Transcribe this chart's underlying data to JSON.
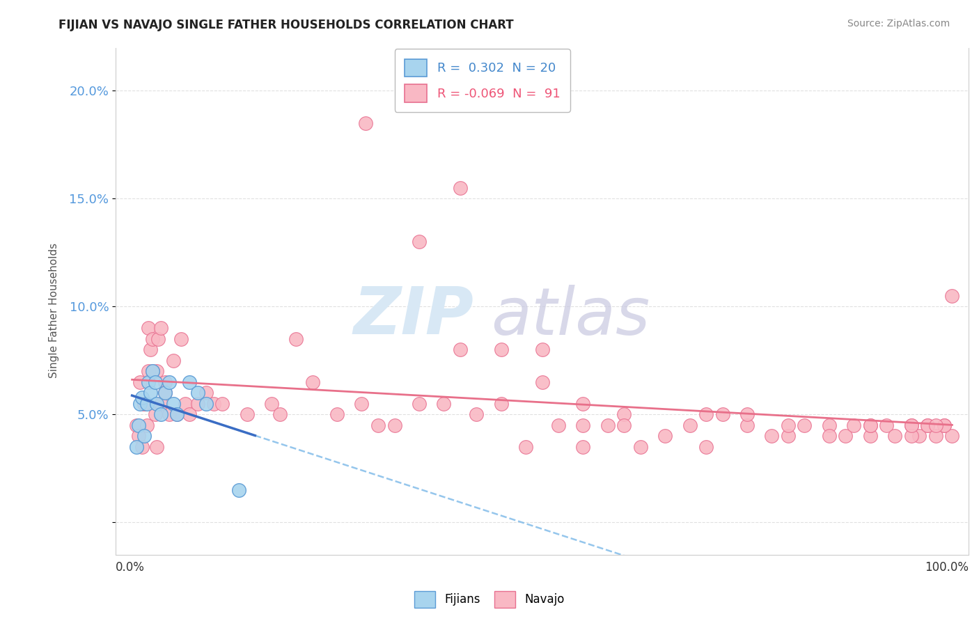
{
  "title": "FIJIAN VS NAVAJO SINGLE FATHER HOUSEHOLDS CORRELATION CHART",
  "source": "Source: ZipAtlas.com",
  "ylabel": "Single Father Households",
  "xlim": [
    -2,
    102
  ],
  "ylim": [
    -1.5,
    22.0
  ],
  "yticks": [
    0.0,
    5.0,
    10.0,
    15.0,
    20.0
  ],
  "ytick_labels": [
    "",
    "5.0%",
    "10.0%",
    "15.0%",
    "20.0%"
  ],
  "fijian_R": 0.302,
  "fijian_N": 20,
  "navajo_R": -0.069,
  "navajo_N": 91,
  "fijian_color": "#A8D4EE",
  "navajo_color": "#F9B8C4",
  "fijian_edge_color": "#5B9BD5",
  "navajo_edge_color": "#E87090",
  "fijian_line_color": "#3A6DC4",
  "navajo_line_color": "#E8708A",
  "dashed_line_color": "#7BB8E8",
  "background_color": "#FFFFFF",
  "grid_color": "#E0E0E0",
  "fijian_x": [
    0.5,
    0.8,
    1.0,
    1.2,
    1.5,
    1.8,
    2.0,
    2.2,
    2.5,
    2.8,
    3.0,
    3.5,
    4.0,
    4.5,
    5.0,
    5.5,
    7.0,
    8.0,
    9.0,
    13.0
  ],
  "fijian_y": [
    3.5,
    4.5,
    5.5,
    5.8,
    4.0,
    5.5,
    6.5,
    6.0,
    7.0,
    6.5,
    5.5,
    5.0,
    6.0,
    6.5,
    5.5,
    5.0,
    6.5,
    6.0,
    5.5,
    1.5
  ],
  "navajo_x": [
    0.5,
    0.8,
    1.0,
    1.2,
    1.5,
    1.8,
    2.0,
    2.2,
    2.5,
    2.8,
    3.0,
    3.2,
    3.5,
    4.0,
    4.5,
    5.0,
    5.5,
    6.0,
    6.5,
    7.0,
    8.0,
    9.0,
    10.0,
    11.0,
    14.0,
    17.0,
    20.0,
    22.0,
    25.0,
    28.0,
    30.0,
    32.0,
    35.0,
    38.0,
    40.0,
    42.0,
    45.0,
    48.0,
    50.0,
    52.0,
    55.0,
    58.0,
    60.0,
    62.0,
    65.0,
    68.0,
    70.0,
    72.0,
    75.0,
    78.0,
    80.0,
    82.0,
    85.0,
    87.0,
    88.0,
    90.0,
    92.0,
    93.0,
    95.0,
    96.0,
    97.0,
    98.0,
    99.0,
    100.0,
    1.5,
    2.0,
    2.5,
    3.0,
    3.5,
    4.0,
    18.0,
    28.5,
    35.0,
    40.0,
    45.0,
    50.0,
    55.0,
    60.0,
    75.0,
    85.0,
    90.0,
    95.0,
    97.0,
    99.0,
    55.0,
    70.0,
    80.0,
    90.0,
    95.0,
    98.0,
    100.0
  ],
  "navajo_y": [
    4.5,
    4.0,
    6.5,
    3.5,
    5.5,
    4.5,
    9.0,
    8.0,
    8.5,
    5.0,
    7.0,
    8.5,
    9.0,
    6.5,
    5.0,
    7.5,
    5.0,
    8.5,
    5.5,
    5.0,
    5.5,
    6.0,
    5.5,
    5.5,
    5.0,
    5.5,
    8.5,
    6.5,
    5.0,
    5.5,
    4.5,
    4.5,
    5.5,
    5.5,
    8.0,
    5.0,
    5.5,
    3.5,
    6.5,
    4.5,
    5.5,
    4.5,
    5.0,
    3.5,
    4.0,
    4.5,
    3.5,
    5.0,
    4.5,
    4.0,
    4.0,
    4.5,
    4.5,
    4.0,
    4.5,
    4.0,
    4.5,
    4.0,
    4.5,
    4.0,
    4.5,
    4.0,
    4.5,
    4.0,
    5.5,
    7.0,
    7.0,
    3.5,
    5.5,
    6.0,
    5.0,
    18.5,
    13.0,
    15.5,
    8.0,
    8.0,
    3.5,
    4.5,
    5.0,
    4.0,
    4.5,
    4.0,
    4.5,
    4.5,
    4.5,
    5.0,
    4.5,
    4.5,
    4.5,
    4.5,
    10.5
  ],
  "watermark_zip_color": "#D8E8F5",
  "watermark_atlas_color": "#C8C8E0",
  "legend_fij_label": "R =  0.302  N = 20",
  "legend_nav_label": "R = -0.069  N =  91"
}
